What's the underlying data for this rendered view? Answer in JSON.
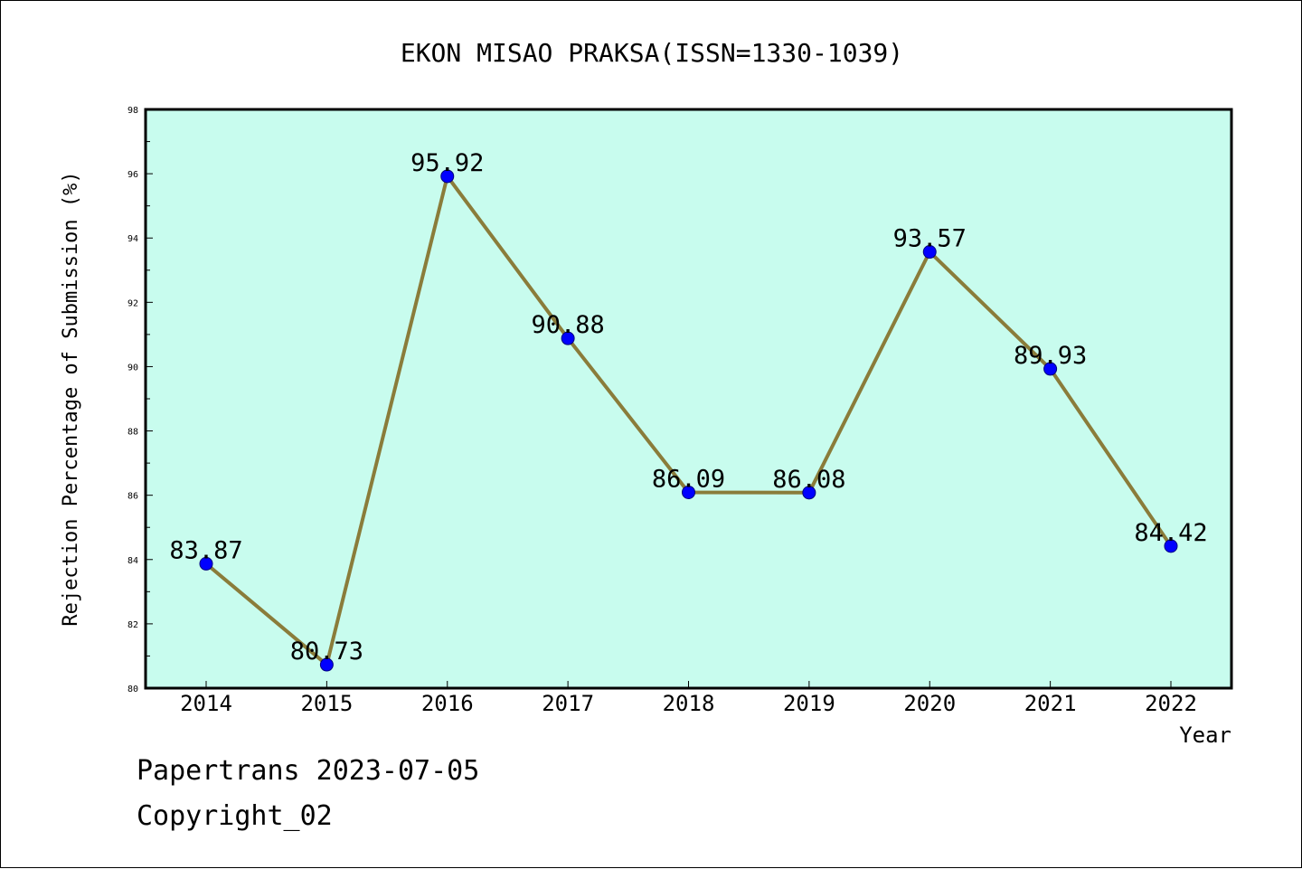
{
  "footer": {
    "line1": "Papertrans 2023-07-05",
    "line2": "Copyright_02"
  },
  "chart_data": {
    "type": "line",
    "title": "EKON MISAO PRAKSA(ISSN=1330-1039)",
    "xlabel": "Year",
    "ylabel": "Rejection Percentage of Submission (%)",
    "categories": [
      "2014",
      "2015",
      "2016",
      "2017",
      "2018",
      "2019",
      "2020",
      "2021",
      "2022"
    ],
    "series": [
      {
        "values": [
          83.87,
          80.73,
          95.92,
          90.88,
          86.09,
          86.08,
          93.57,
          89.93,
          84.42
        ],
        "labels": [
          "83.87",
          "80.73",
          "95.92",
          "90.88",
          "86.09",
          "86.08",
          "93.57",
          "89.93",
          "84.42"
        ]
      }
    ],
    "ylim": [
      80,
      98
    ],
    "yticks": [
      80,
      82,
      84,
      86,
      88,
      90,
      92,
      94,
      96,
      98
    ],
    "grid": false,
    "colors": {
      "plot_background": "#c8fcee",
      "line": "#8a7c3a",
      "marker_fill": "#0000ff",
      "marker_stroke": "#000080"
    }
  }
}
